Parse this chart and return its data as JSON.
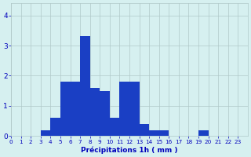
{
  "hours": [
    0,
    1,
    2,
    3,
    4,
    5,
    6,
    7,
    8,
    9,
    10,
    11,
    12,
    13,
    14,
    15,
    16,
    17,
    18,
    19,
    20,
    21,
    22,
    23
  ],
  "values": [
    0,
    0,
    0,
    0.2,
    0.6,
    1.8,
    1.8,
    3.3,
    1.6,
    1.5,
    0.6,
    1.8,
    1.8,
    0.4,
    0.2,
    0.2,
    0,
    0,
    0,
    0.2,
    0,
    0,
    0,
    0
  ],
  "bar_color": "#1a3fc4",
  "background_color": "#d6f0f0",
  "grid_color": "#b0c8c8",
  "xlabel": "Précipitations 1h ( mm )",
  "xlabel_color": "#0000bb",
  "tick_color": "#0000bb",
  "ylim": [
    0,
    4.4
  ],
  "yticks": [
    0,
    1,
    2,
    3,
    4
  ],
  "xlim": [
    0,
    24
  ],
  "xticks": [
    0,
    1,
    2,
    3,
    4,
    5,
    6,
    7,
    8,
    9,
    10,
    11,
    12,
    13,
    14,
    15,
    16,
    17,
    18,
    19,
    20,
    21,
    22,
    23
  ],
  "figsize": [
    3.2,
    2.0
  ],
  "dpi": 100
}
